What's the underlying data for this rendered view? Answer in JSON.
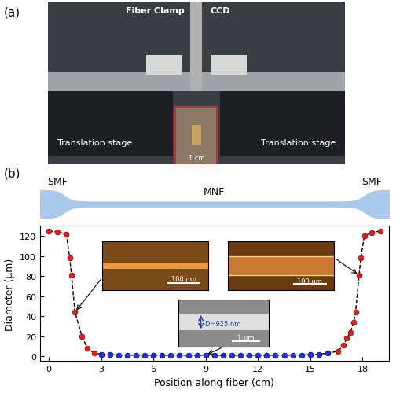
{
  "panel_a": {
    "label": "(a)",
    "fiber_clamp": "Fiber Clamp",
    "ccd": "CCD",
    "stages": [
      "Translation stage",
      "Translation stage"
    ],
    "scale_bar": "1 cm"
  },
  "panel_b": {
    "label": "(b)",
    "schematic": [
      "SMF",
      "MNF",
      "SMF"
    ],
    "insets": [
      {
        "scale_bar": "100 μm"
      },
      {
        "scale_bar": "100 μm"
      },
      {
        "diameter_label": "D=925 nm",
        "scale_bar": "1 μm"
      }
    ]
  },
  "chart_data": {
    "type": "scatter",
    "x_label": "Position along fiber (cm)",
    "y_label": "Diameter (μm)",
    "xlim": [
      -0.5,
      19.5
    ],
    "ylim": [
      -5,
      130
    ],
    "xticks": [
      0,
      3,
      6,
      9,
      12,
      15,
      18
    ],
    "yticks": [
      0,
      20,
      40,
      60,
      80,
      100,
      120
    ],
    "marker": "o",
    "line_style": "dashed",
    "series": [
      {
        "color": "#e02020",
        "x": [
          0,
          0.5,
          1.0,
          1.2,
          1.3,
          1.5,
          1.9,
          2.2,
          2.6
        ],
        "values": [
          125,
          124,
          122,
          98,
          81,
          44,
          20,
          8,
          3
        ]
      },
      {
        "color": "#2030e0",
        "x": [
          3.0,
          3.5,
          4.0,
          4.5,
          5.0,
          5.5,
          6.0,
          6.5,
          7.0,
          7.5,
          8.0,
          8.5,
          9.0,
          9.5,
          10.0,
          10.5,
          11.0,
          11.5,
          12.0,
          12.5,
          13.0,
          13.5,
          14.0,
          14.5,
          15.0,
          15.5,
          16.0
        ],
        "values": [
          2,
          1.5,
          1.2,
          1,
          1,
          1,
          1,
          1,
          1,
          1,
          1,
          1,
          1,
          1,
          1,
          1,
          1,
          1,
          1,
          1,
          1,
          1,
          1,
          1.2,
          1.5,
          2,
          3
        ]
      },
      {
        "color": "#e02020",
        "x": [
          16.6,
          16.9,
          17.1,
          17.3,
          17.5,
          17.6,
          17.8,
          17.9,
          18.1,
          18.5,
          19.0
        ],
        "values": [
          5,
          11,
          18,
          24,
          34,
          44,
          81,
          98,
          120,
          123,
          125
        ]
      }
    ]
  }
}
